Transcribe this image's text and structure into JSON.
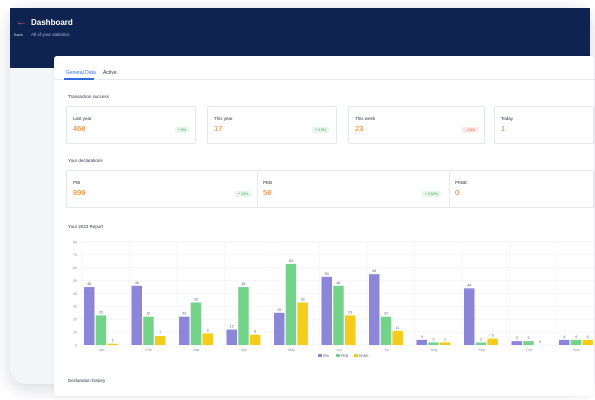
{
  "header": {
    "back_label": "Back",
    "title": "Dashboard",
    "subtitle": "All of your statistics"
  },
  "tabs": [
    {
      "label": "General Data",
      "active": true
    },
    {
      "label": "Active",
      "active": false
    }
  ],
  "transaction": {
    "section_label": "Transaction success",
    "items": [
      {
        "label": "Last year",
        "value": "468",
        "badge": "+ 9%",
        "trend": "up"
      },
      {
        "label": "This year",
        "value": "17",
        "badge": "+ 4.5%",
        "trend": "up"
      },
      {
        "label": "This week",
        "value": "23",
        "badge": "- 2.8%",
        "trend": "down"
      },
      {
        "label": "Today",
        "value": "1",
        "badge": "",
        "trend": ""
      }
    ]
  },
  "declarations": {
    "section_label": "Your declarations",
    "items": [
      {
        "label": "PIB",
        "value": "899",
        "badge": "+ 12%",
        "trend": "up"
      },
      {
        "label": "PEB",
        "value": "58",
        "badge": "+ 2.82%",
        "trend": "up"
      },
      {
        "label": "PKBE",
        "value": "0",
        "badge": "",
        "trend": ""
      }
    ]
  },
  "report_label": "Your 2023 Report",
  "bottom_label": "Declaration history",
  "colors": {
    "pib": "#8b86d8",
    "peb": "#74d38a",
    "pkbe": "#f4cc1a",
    "accent": "#2f6fdc",
    "navy": "#0f2350",
    "orange": "#ef7b1a"
  },
  "chart_data": {
    "type": "bar",
    "title": "",
    "xlabel": "",
    "ylabel": "",
    "ylim": [
      0,
      80
    ],
    "yticks": [
      "0",
      "10",
      "20",
      "30",
      "40",
      "50",
      "60",
      "70",
      "80"
    ],
    "categories": [
      "Jan",
      "Feb",
      "Mar",
      "Apr",
      "May",
      "Jun",
      "Jul",
      "Aug",
      "Sep",
      "Oct",
      "Nov"
    ],
    "series": [
      {
        "name": "PIB",
        "color": "#8b86d8",
        "values": [
          45,
          46,
          22,
          12,
          25,
          53,
          55,
          4,
          44,
          3,
          4
        ]
      },
      {
        "name": "PEB",
        "color": "#74d38a",
        "values": [
          23,
          22,
          33,
          45,
          63,
          46,
          22,
          2,
          2,
          3,
          4
        ]
      },
      {
        "name": "PKBE",
        "color": "#f4cc1a",
        "values": [
          1,
          7,
          9,
          8,
          33,
          23,
          11,
          2,
          5,
          0,
          4
        ]
      }
    ],
    "grid": true,
    "legend_position": "bottom"
  }
}
